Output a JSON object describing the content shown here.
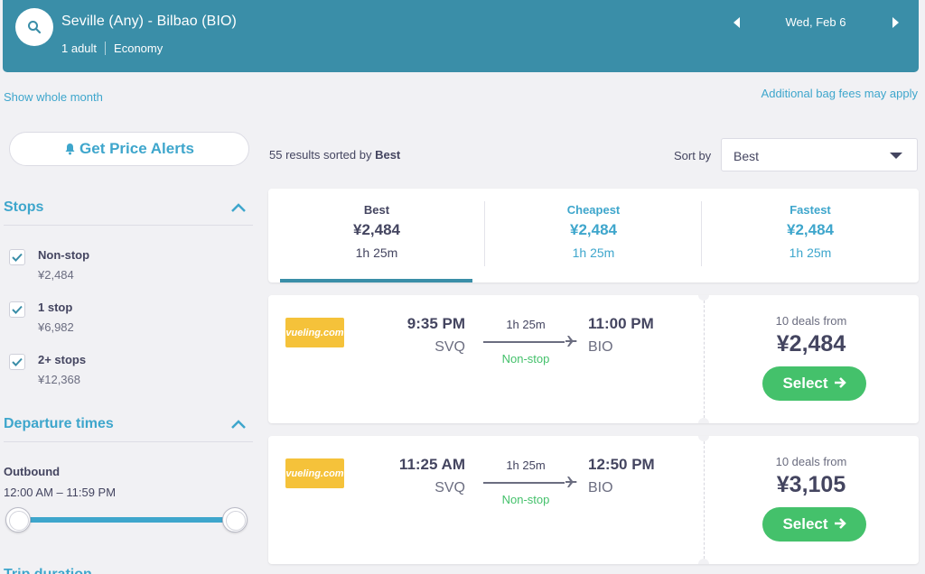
{
  "header": {
    "route": "Seville (Any) - Bilbao (BIO)",
    "travelers": "1 adult",
    "cabin": "Economy",
    "date": "Wed, Feb 6"
  },
  "links": {
    "show_month": "Show whole month",
    "bag_fees": "Additional bag fees may apply"
  },
  "sidebar": {
    "alert_label": "Get Price Alerts",
    "stops_title": "Stops",
    "stops": [
      {
        "label": "Non-stop",
        "price": "¥2,484",
        "checked": true
      },
      {
        "label": "1 stop",
        "price": "¥6,982",
        "checked": true
      },
      {
        "label": "2+ stops",
        "price": "¥12,368",
        "checked": true
      }
    ],
    "departure_title": "Departure times",
    "outbound_label": "Outbound",
    "outbound_range": "12:00 AM – 11:59 PM",
    "outbound_range_fraction": [
      0,
      1
    ],
    "trip_duration_title": "Trip duration"
  },
  "results": {
    "count_text": "55 results sorted by",
    "sort_key": "Best",
    "sort_by_label": "Sort by",
    "sort_value": "Best"
  },
  "tabs": [
    {
      "label": "Best",
      "price": "¥2,484",
      "duration": "1h 25m"
    },
    {
      "label": "Cheapest",
      "price": "¥2,484",
      "duration": "1h 25m"
    },
    {
      "label": "Fastest",
      "price": "¥2,484",
      "duration": "1h 25m"
    }
  ],
  "flights": [
    {
      "airline": "vueling.com",
      "dep_time": "9:35 PM",
      "dep_code": "SVQ",
      "duration": "1h 25m",
      "stops": "Non-stop",
      "arr_time": "11:00 PM",
      "arr_code": "BIO",
      "deals": "10 deals from",
      "price": "¥2,484",
      "select_label": "Select"
    },
    {
      "airline": "vueling.com",
      "dep_time": "11:25 AM",
      "dep_code": "SVQ",
      "duration": "1h 25m",
      "stops": "Non-stop",
      "arr_time": "12:50 PM",
      "arr_code": "BIO",
      "deals": "10 deals from",
      "price": "¥3,105",
      "select_label": "Select"
    }
  ],
  "colors": {
    "header_bg": "#3a8ea8",
    "accent": "#3ea6cc",
    "select_green": "#44c16b",
    "airline_yellow": "#f5c23a"
  }
}
